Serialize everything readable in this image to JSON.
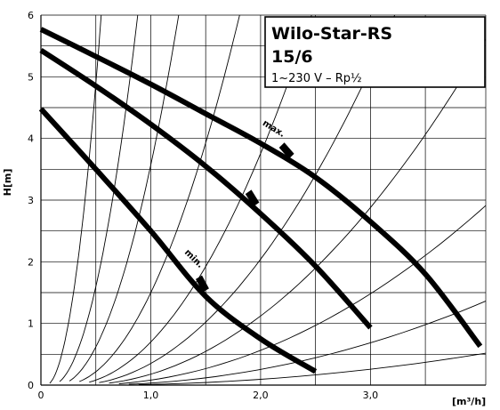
{
  "chart_data": {
    "type": "line",
    "title": "Wilo-Star-RS",
    "subtitle": "15/6",
    "spec": "1~230 V – Rp½",
    "xlabel": "[m³/h]",
    "ylabel": "H[m]",
    "xlim": [
      0,
      4.05
    ],
    "ylim": [
      0,
      6
    ],
    "x_ticks": [
      {
        "value": 0,
        "label": "0"
      },
      {
        "value": 1,
        "label": "1,0"
      },
      {
        "value": 2,
        "label": "2,0"
      },
      {
        "value": 3,
        "label": "3,0"
      }
    ],
    "y_ticks": [
      {
        "value": 0,
        "label": "0"
      },
      {
        "value": 1,
        "label": "1"
      },
      {
        "value": 2,
        "label": "2"
      },
      {
        "value": 3,
        "label": "3"
      },
      {
        "value": 4,
        "label": "4"
      },
      {
        "value": 5,
        "label": "5"
      },
      {
        "value": 6,
        "label": "6"
      }
    ],
    "grid": true,
    "series": [
      {
        "name": "max.",
        "points": [
          [
            0,
            5.77
          ],
          [
            0.5,
            5.33
          ],
          [
            1.0,
            4.88
          ],
          [
            1.5,
            4.4
          ],
          [
            2.0,
            3.92
          ],
          [
            2.5,
            3.37
          ],
          [
            3.0,
            2.65
          ],
          [
            3.5,
            1.8
          ],
          [
            4.0,
            0.63
          ]
        ]
      },
      {
        "name": "",
        "points": [
          [
            0,
            5.43
          ],
          [
            0.5,
            4.85
          ],
          [
            1.0,
            4.23
          ],
          [
            1.5,
            3.55
          ],
          [
            2.0,
            2.78
          ],
          [
            2.5,
            1.93
          ],
          [
            3.0,
            0.93
          ]
        ]
      },
      {
        "name": "min.",
        "points": [
          [
            0,
            4.48
          ],
          [
            0.5,
            3.5
          ],
          [
            1.0,
            2.5
          ],
          [
            1.5,
            1.44
          ],
          [
            2.0,
            0.75
          ],
          [
            2.5,
            0.22
          ]
        ]
      }
    ],
    "marker_positions": [
      {
        "series": "max.",
        "x": 2.2
      },
      {
        "series": "",
        "x": 1.9
      },
      {
        "series": "min.",
        "x": 1.45
      }
    ],
    "system_curves": [
      {
        "x_at_top": 0.5
      },
      {
        "x_at_top": 0.78
      },
      {
        "x_at_top": 1.1
      },
      {
        "x_at_top": 1.6
      },
      {
        "x_at_top": 2.2
      },
      {
        "x_at_top": 2.9
      },
      {
        "x_at_top": 3.8
      },
      {
        "x_at_top": 5.2
      },
      {
        "x_at_top": 7.5
      },
      {
        "x_at_top": 12
      }
    ]
  }
}
